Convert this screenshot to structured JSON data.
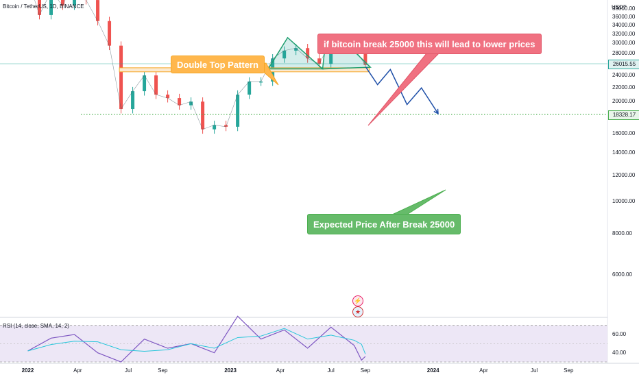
{
  "symbol": "Bitcoin / TetherUS, 1D, BINANCE",
  "unit": "USDT",
  "chart_data": [
    {
      "type": "line",
      "name": "price",
      "x": [
        "2022-01-01",
        "2022-01-22",
        "2022-02-12",
        "2022-03-05",
        "2022-03-26",
        "2022-04-16",
        "2022-05-07",
        "2022-05-28",
        "2022-06-18",
        "2022-07-09",
        "2022-07-30",
        "2022-08-20",
        "2022-09-10",
        "2022-10-01",
        "2022-10-22",
        "2022-11-12",
        "2022-12-03",
        "2022-12-24",
        "2023-01-14",
        "2023-02-04",
        "2023-02-25",
        "2023-03-18",
        "2023-04-08",
        "2023-04-29",
        "2023-05-20",
        "2023-06-10",
        "2023-07-01",
        "2023-07-22",
        "2023-08-12",
        "2023-09-01"
      ],
      "y": [
        47000,
        36500,
        43000,
        39000,
        47000,
        40500,
        35000,
        29500,
        19000,
        21500,
        24000,
        21000,
        20500,
        19500,
        20000,
        16500,
        17000,
        16800,
        21000,
        23000,
        23000,
        27000,
        28500,
        29000,
        27000,
        26000,
        30500,
        29500,
        29000,
        25800
      ],
      "ylim": [
        4800,
        39000
      ],
      "y_scale": "log",
      "yticks": [
        "6000.00",
        "8000.00",
        "10000.00",
        "12000.00",
        "14000.00",
        "16000.00",
        "18000.00",
        "20000.00",
        "22000.00",
        "24000.00",
        "26000.00",
        "28000.00",
        "30000.00",
        "32000.00",
        "34000.00",
        "36000.00",
        "38000.00"
      ],
      "xticks": [
        {
          "date": "2022-01-01",
          "label": "2022",
          "year": true
        },
        {
          "date": "2022-04-01",
          "label": "Apr",
          "year": false
        },
        {
          "date": "2022-07-01",
          "label": "Jul",
          "year": false
        },
        {
          "date": "2022-09-01",
          "label": "Sep",
          "year": false
        },
        {
          "date": "2023-01-01",
          "label": "2023",
          "year": true
        },
        {
          "date": "2023-04-01",
          "label": "Apr",
          "year": false
        },
        {
          "date": "2023-07-01",
          "label": "Jul",
          "year": false
        },
        {
          "date": "2023-09-01",
          "label": "Sep",
          "year": false
        },
        {
          "date": "2024-01-01",
          "label": "2024",
          "year": true
        },
        {
          "date": "2024-04-01",
          "label": "Apr",
          "year": false
        },
        {
          "date": "2024-07-01",
          "label": "Jul",
          "year": false
        },
        {
          "date": "2024-09-01",
          "label": "Sep",
          "year": false
        }
      ],
      "xlim": [
        "2021-11-12",
        "2024-11-10"
      ],
      "current_price": {
        "value": 26015.55,
        "label": "26015.55",
        "color": "#26a69a"
      },
      "target_price": {
        "value": 18328.17,
        "label": "18328.17",
        "color": "#4caf50"
      },
      "support_zone": {
        "low": 24600,
        "high": 25300,
        "from": "2022-06-15",
        "to": "2023-09-08",
        "color": "#f5a623"
      },
      "double_top": [
        {
          "x": "2023-03-10",
          "y": 25100
        },
        {
          "x": "2023-04-14",
          "y": 31200
        },
        {
          "x": "2023-06-16",
          "y": 25100
        },
        {
          "x": "2023-06-21",
          "y": 30000
        },
        {
          "x": "2023-07-13",
          "y": 31800
        },
        {
          "x": "2023-09-10",
          "y": 25400
        }
      ],
      "projection": [
        {
          "x": "2023-09-02",
          "y": 25400
        },
        {
          "x": "2023-09-23",
          "y": 22500
        },
        {
          "x": "2023-10-16",
          "y": 25000
        },
        {
          "x": "2023-11-15",
          "y": 19600
        },
        {
          "x": "2023-12-11",
          "y": 22000
        },
        {
          "x": "2024-01-10",
          "y": 18400
        }
      ],
      "line_color": "#26a69a",
      "down_color": "#ef5350",
      "annotations": [
        {
          "id": "pattern",
          "text": "Double Top Pattern",
          "color": "#ffb74d"
        },
        {
          "id": "warning",
          "text": "if bitcoin break 25000 this will lead to lower prices",
          "color": "#f07181"
        },
        {
          "id": "target",
          "text": "Expected Price After Break 25000",
          "color": "#66bb6a"
        }
      ]
    },
    {
      "type": "line",
      "name": "RSI (14, close, SMA, 14, 2)",
      "x": [
        "2022-01-01",
        "2022-02-12",
        "2022-03-26",
        "2022-05-07",
        "2022-06-18",
        "2022-07-30",
        "2022-09-10",
        "2022-10-22",
        "2022-12-03",
        "2023-01-14",
        "2023-02-25",
        "2023-04-08",
        "2023-05-20",
        "2023-07-01",
        "2023-08-12",
        "2023-08-25",
        "2023-09-01"
      ],
      "y": [
        42,
        56,
        60,
        40,
        30,
        55,
        45,
        50,
        40,
        80,
        55,
        65,
        45,
        68,
        48,
        32,
        36
      ],
      "ylim": [
        30,
        75
      ],
      "yticks": [
        "40.00",
        "60.00"
      ],
      "bands": [
        30,
        70
      ],
      "line_color": "#7e57c2",
      "sma_color": "#26c6da",
      "band_fill": "#ede7f6"
    }
  ]
}
